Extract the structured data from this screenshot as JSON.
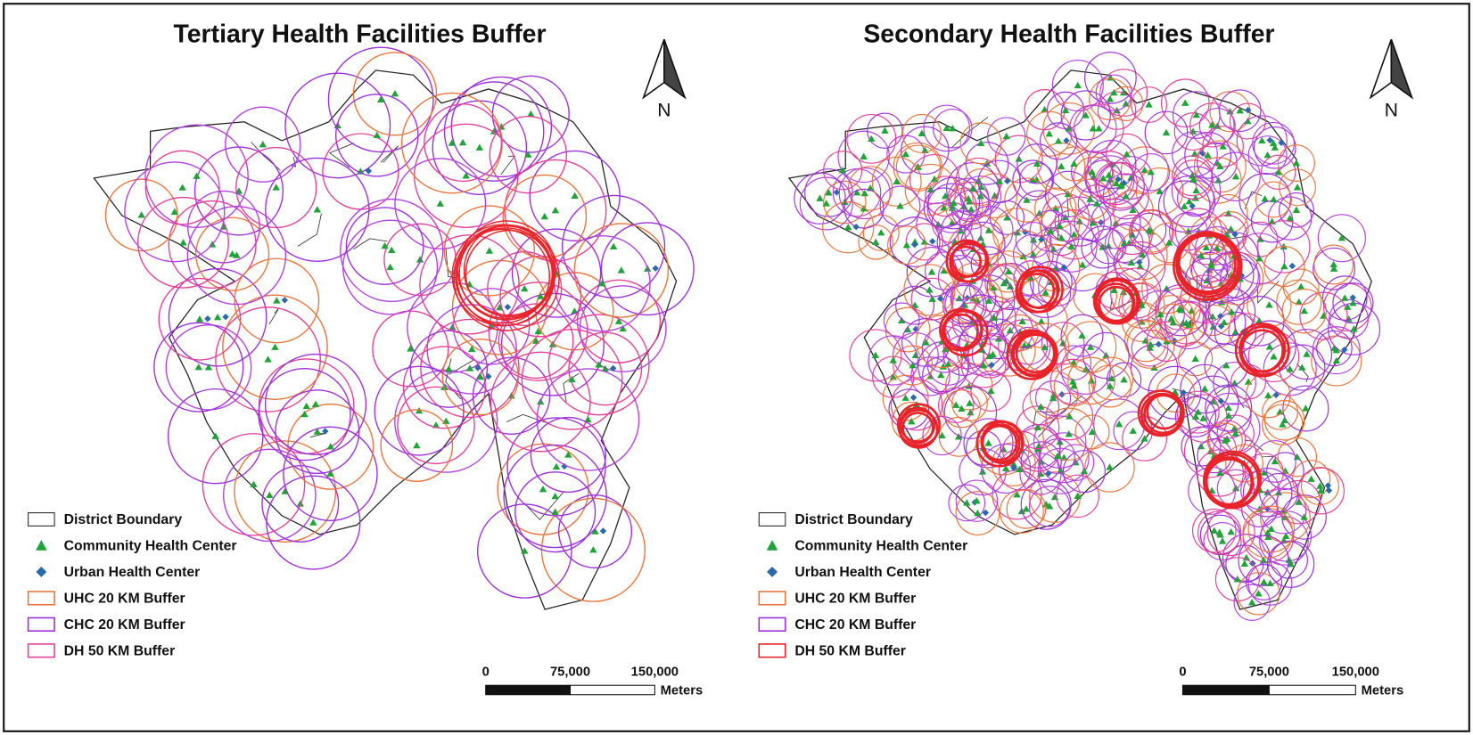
{
  "panels": [
    {
      "title": "Tertiary Health Facilities Buffer",
      "north": "N",
      "legend": [
        "District Boundary",
        "Community Health Center",
        "Urban Health Center",
        "UHC 20 KM Buffer",
        "CHC 20 KM Buffer",
        "DH 50 KM Buffer"
      ],
      "scale": {
        "ticks": [
          "0",
          "75,000",
          "150,000"
        ],
        "unit": "Meters"
      }
    },
    {
      "title": "Secondary Health Facilities Buffer",
      "north": "N",
      "legend": [
        "District Boundary",
        "Community Health Center",
        "Urban Health Center",
        "UHC 20 KM Buffer",
        "CHC 20 KM Buffer",
        "DH 50 KM Buffer"
      ],
      "scale": {
        "ticks": [
          "0",
          "75,000",
          "150,000"
        ],
        "unit": "Meters"
      }
    }
  ]
}
